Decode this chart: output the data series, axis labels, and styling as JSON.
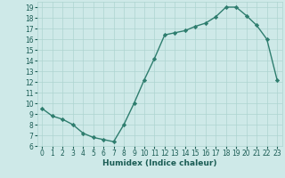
{
  "x": [
    0,
    1,
    2,
    3,
    4,
    5,
    6,
    7,
    8,
    9,
    10,
    11,
    12,
    13,
    14,
    15,
    16,
    17,
    18,
    19,
    20,
    21,
    22,
    23
  ],
  "y": [
    9.5,
    8.8,
    8.5,
    8.0,
    7.2,
    6.8,
    6.6,
    6.4,
    8.0,
    10.0,
    12.2,
    14.2,
    16.4,
    16.6,
    16.8,
    17.2,
    17.5,
    18.1,
    19.0,
    19.0,
    18.2,
    17.3,
    16.0,
    12.2
  ],
  "xlabel": "Humidex (Indice chaleur)",
  "xlim": [
    -0.5,
    23.5
  ],
  "ylim": [
    6,
    19.5
  ],
  "yticks": [
    6,
    7,
    8,
    9,
    10,
    11,
    12,
    13,
    14,
    15,
    16,
    17,
    18,
    19
  ],
  "xticks": [
    0,
    1,
    2,
    3,
    4,
    5,
    6,
    7,
    8,
    9,
    10,
    11,
    12,
    13,
    14,
    15,
    16,
    17,
    18,
    19,
    20,
    21,
    22,
    23
  ],
  "line_color": "#2e7d6e",
  "marker": "D",
  "marker_size": 2.2,
  "bg_color": "#cee9e8",
  "grid_color": "#aed4d0",
  "font_color": "#1a5c54",
  "tick_fontsize": 5.5,
  "xlabel_fontsize": 6.5,
  "linewidth": 1.0
}
